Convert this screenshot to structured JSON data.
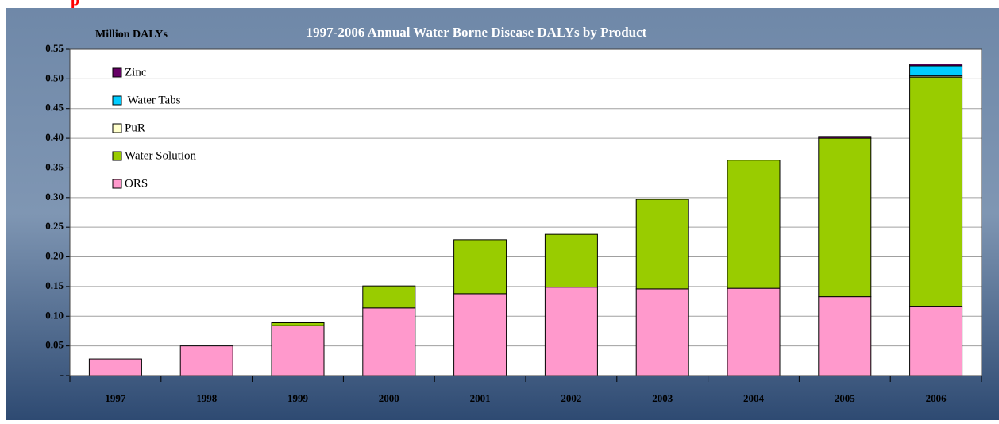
{
  "header_text": "p",
  "chart_data": {
    "type": "stacked_bar",
    "title": "1997-2006 Annual Water Borne Disease DALYs by Product",
    "y_label": "Million DALYs",
    "categories": [
      "1997",
      "1998",
      "1999",
      "2000",
      "2001",
      "2002",
      "2003",
      "2004",
      "2005",
      "2006"
    ],
    "series": [
      {
        "name": "ORS",
        "color": "#ff99cc",
        "values": [
          0.028,
          0.05,
          0.084,
          0.114,
          0.138,
          0.149,
          0.146,
          0.147,
          0.133,
          0.116
        ]
      },
      {
        "name": "Water Solution",
        "color": "#99cc00",
        "values": [
          0,
          0,
          0.005,
          0.037,
          0.091,
          0.089,
          0.151,
          0.216,
          0.267,
          0.387
        ]
      },
      {
        "name": "PuR",
        "color": "#ffffcc",
        "values": [
          0,
          0,
          0,
          0,
          0,
          0,
          0,
          0,
          0,
          0.002
        ]
      },
      {
        "name": " Water Tabs",
        "color": "#00ccff",
        "values": [
          0,
          0,
          0,
          0,
          0,
          0,
          0,
          0,
          0,
          0.017
        ]
      },
      {
        "name": "Zinc",
        "color": "#660066",
        "values": [
          0,
          0,
          0,
          0,
          0,
          0,
          0,
          0,
          0.003,
          0.003
        ]
      }
    ],
    "ylim": [
      0,
      0.55
    ],
    "yticks": [
      {
        "value": 0,
        "label": "-"
      },
      0.05,
      {
        "value": 0.1,
        "label": "0.10"
      },
      0.15,
      {
        "value": 0.2,
        "label": "0.20"
      },
      0.25,
      {
        "value": 0.3,
        "label": "0.30"
      },
      0.35,
      {
        "value": 0.4,
        "label": "0.40"
      },
      0.45,
      {
        "value": 0.5,
        "label": "0.50"
      },
      0.55
    ],
    "grid": true
  }
}
